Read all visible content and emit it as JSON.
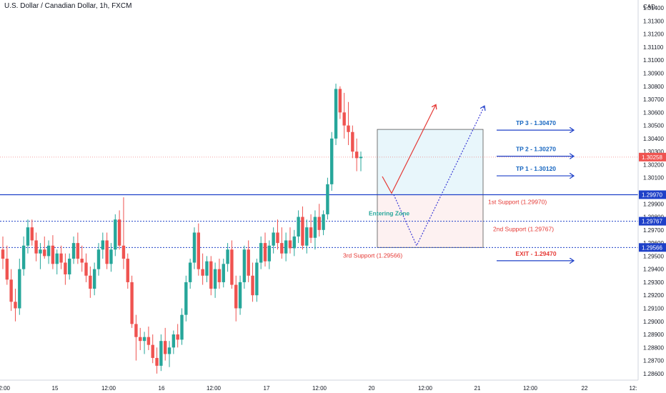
{
  "header": {
    "title": "U.S. Dollar / Canadian Dollar, 1h, FXCM",
    "currency": "CAD"
  },
  "colors": {
    "up": "#26a69a",
    "down": "#ef5350",
    "blue_line": "#1e40c8",
    "tp_text": "#1565c0",
    "support_text": "#e53935",
    "entry_text": "#26a69a",
    "zone_top_fill": "#e8f6fb",
    "zone_bottom_fill": "#fdf1f1",
    "price_tag": "#ef5350"
  },
  "chart_data": {
    "type": "candlestick",
    "ylim": [
      1.2855,
      1.3145
    ],
    "y_ticks": [
      "1.31400",
      "1.31300",
      "1.31200",
      "1.31100",
      "1.31000",
      "1.30900",
      "1.30800",
      "1.30700",
      "1.30600",
      "1.30500",
      "1.30400",
      "1.30300",
      "1.30200",
      "1.30100",
      "1.29900",
      "1.29800",
      "1.29700",
      "1.29600",
      "1.29500",
      "1.29400",
      "1.29300",
      "1.29200",
      "1.29100",
      "1.29000",
      "1.28900",
      "1.28800",
      "1.28700",
      "1.28600"
    ],
    "x_ticks": [
      "12:00",
      "15",
      "12:00",
      "16",
      "12:00",
      "17",
      "12:00",
      "20",
      "12:00",
      "21",
      "12:00",
      "22",
      "12:"
    ],
    "current_price": "1.30258",
    "levels": [
      {
        "label": "1.29970",
        "value": 1.2997,
        "style": "solid"
      },
      {
        "label": "1.29767",
        "value": 1.29767,
        "style": "dotted"
      },
      {
        "label": "1.29566",
        "value": 1.29566,
        "style": "dotted"
      }
    ],
    "annotations": {
      "tp3": "TP 3 - 1.30470",
      "tp2": "TP 2 - 1.30270",
      "tp1": "TP 1 - 1.30120",
      "exit": "EXIT - 1.29470",
      "support1": "1st Support (1.29970)",
      "support2": "2nd Support (1.29767)",
      "support3": "3rd Support (1.29566)",
      "entering_zone": "Entering Zone"
    },
    "candles": [
      [
        1.2955,
        1.2965,
        1.294,
        1.2948
      ],
      [
        1.2948,
        1.2958,
        1.2928,
        1.2932
      ],
      [
        1.2932,
        1.294,
        1.2908,
        1.2915
      ],
      [
        1.2915,
        1.2925,
        1.29,
        1.291
      ],
      [
        1.291,
        1.2948,
        1.2905,
        1.294
      ],
      [
        1.294,
        1.2965,
        1.2935,
        1.2958
      ],
      [
        1.2958,
        1.2978,
        1.2952,
        1.2972
      ],
      [
        1.2972,
        1.2978,
        1.2958,
        1.2962
      ],
      [
        1.2962,
        1.2968,
        1.2946,
        1.2952
      ],
      [
        1.2952,
        1.296,
        1.294,
        1.2955
      ],
      [
        1.2955,
        1.2965,
        1.2948,
        1.295
      ],
      [
        1.295,
        1.2962,
        1.2944,
        1.2958
      ],
      [
        1.2958,
        1.2966,
        1.294,
        1.2944
      ],
      [
        1.2944,
        1.2955,
        1.2936,
        1.2952
      ],
      [
        1.2952,
        1.2958,
        1.294,
        1.2945
      ],
      [
        1.2945,
        1.2952,
        1.2928,
        1.2936
      ],
      [
        1.2936,
        1.2952,
        1.2932,
        1.2948
      ],
      [
        1.2948,
        1.2965,
        1.2944,
        1.296
      ],
      [
        1.296,
        1.2968,
        1.2944,
        1.2948
      ],
      [
        1.2948,
        1.2958,
        1.2938,
        1.2945
      ],
      [
        1.2945,
        1.2952,
        1.293,
        1.2935
      ],
      [
        1.2935,
        1.2942,
        1.2918,
        1.2925
      ],
      [
        1.2925,
        1.2945,
        1.292,
        1.294
      ],
      [
        1.294,
        1.296,
        1.2935,
        1.2955
      ],
      [
        1.2955,
        1.2968,
        1.2948,
        1.2962
      ],
      [
        1.2962,
        1.2968,
        1.294,
        1.2944
      ],
      [
        1.2944,
        1.296,
        1.2938,
        1.2955
      ],
      [
        1.2955,
        1.2982,
        1.295,
        1.2978
      ],
      [
        1.2978,
        1.2985,
        1.2955,
        1.2958
      ],
      [
        1.2958,
        1.2995,
        1.294,
        1.2948
      ],
      [
        1.2948,
        1.2952,
        1.2925,
        1.293
      ],
      [
        1.293,
        1.2935,
        1.2895,
        1.2898
      ],
      [
        1.2898,
        1.2905,
        1.287,
        1.2888
      ],
      [
        1.2888,
        1.2895,
        1.2878,
        1.2885
      ],
      [
        1.2885,
        1.2892,
        1.2875,
        1.2888
      ],
      [
        1.2888,
        1.2896,
        1.2878,
        1.2882
      ],
      [
        1.2882,
        1.289,
        1.2868,
        1.2872
      ],
      [
        1.2872,
        1.288,
        1.286,
        1.2866
      ],
      [
        1.2866,
        1.289,
        1.2862,
        1.2885
      ],
      [
        1.2885,
        1.2895,
        1.287,
        1.2875
      ],
      [
        1.2875,
        1.2885,
        1.2865,
        1.288
      ],
      [
        1.288,
        1.2893,
        1.2875,
        1.289
      ],
      [
        1.289,
        1.2898,
        1.288,
        1.2886
      ],
      [
        1.2886,
        1.291,
        1.2882,
        1.2905
      ],
      [
        1.2905,
        1.2935,
        1.29,
        1.293
      ],
      [
        1.293,
        1.2948,
        1.2925,
        1.2945
      ],
      [
        1.2945,
        1.2972,
        1.294,
        1.2968
      ],
      [
        1.2968,
        1.2975,
        1.2935,
        1.294
      ],
      [
        1.294,
        1.2952,
        1.2928,
        1.2935
      ],
      [
        1.2935,
        1.295,
        1.293,
        1.2946
      ],
      [
        1.2946,
        1.295,
        1.292,
        1.2925
      ],
      [
        1.2925,
        1.2945,
        1.2918,
        1.294
      ],
      [
        1.294,
        1.2948,
        1.2925,
        1.293
      ],
      [
        1.293,
        1.2948,
        1.2926,
        1.2944
      ],
      [
        1.2944,
        1.296,
        1.2938,
        1.2955
      ],
      [
        1.2955,
        1.2962,
        1.2925,
        1.2928
      ],
      [
        1.2928,
        1.2935,
        1.29,
        1.291
      ],
      [
        1.291,
        1.2935,
        1.2905,
        1.293
      ],
      [
        1.293,
        1.2958,
        1.2925,
        1.2955
      ],
      [
        1.2955,
        1.2962,
        1.293,
        1.2935
      ],
      [
        1.2935,
        1.2945,
        1.2915,
        1.292
      ],
      [
        1.292,
        1.2948,
        1.2915,
        1.2945
      ],
      [
        1.2945,
        1.2965,
        1.294,
        1.296
      ],
      [
        1.296,
        1.2968,
        1.2942,
        1.2946
      ],
      [
        1.2946,
        1.2962,
        1.294,
        1.2958
      ],
      [
        1.2958,
        1.2972,
        1.2952,
        1.2968
      ],
      [
        1.2968,
        1.2978,
        1.2955,
        1.296
      ],
      [
        1.296,
        1.2972,
        1.2948,
        1.2952
      ],
      [
        1.2952,
        1.2968,
        1.2946,
        1.2962
      ],
      [
        1.2962,
        1.2972,
        1.2952,
        1.2956
      ],
      [
        1.2956,
        1.297,
        1.295,
        1.2965
      ],
      [
        1.2965,
        1.2985,
        1.296,
        1.298
      ],
      [
        1.298,
        1.2988,
        1.2955,
        1.2958
      ],
      [
        1.2958,
        1.2978,
        1.2952,
        1.2972
      ],
      [
        1.2972,
        1.2982,
        1.296,
        1.2964
      ],
      [
        1.2964,
        1.2985,
        1.2955,
        1.298
      ],
      [
        1.298,
        1.299,
        1.2965,
        1.297
      ],
      [
        1.297,
        1.2985,
        1.2966,
        1.2982
      ],
      [
        1.2982,
        1.301,
        1.2978,
        1.3005
      ],
      [
        1.3005,
        1.3045,
        1.3,
        1.304
      ],
      [
        1.304,
        1.3082,
        1.3035,
        1.3078
      ],
      [
        1.3078,
        1.308,
        1.3055,
        1.306
      ],
      [
        1.306,
        1.3075,
        1.304,
        1.305
      ],
      [
        1.305,
        1.3068,
        1.3035,
        1.3045
      ],
      [
        1.3045,
        1.305,
        1.3025,
        1.303
      ],
      [
        1.303,
        1.304,
        1.3015,
        1.3025
      ],
      [
        1.3025,
        1.303,
        1.3015,
        1.3026
      ]
    ]
  }
}
